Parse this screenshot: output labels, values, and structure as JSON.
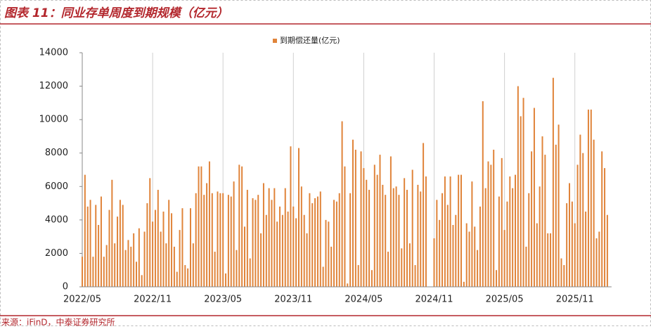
{
  "chart_data": {
    "type": "bar",
    "title": "图表 11：同业存单周度到期规模（亿元）",
    "source": "来源：iFinD，中泰证券研究所",
    "categories": [
      "2022/05",
      null,
      null,
      null,
      null,
      null,
      null,
      null,
      null,
      null,
      null,
      null,
      null,
      null,
      null,
      null,
      null,
      null,
      null,
      null,
      null,
      null,
      null,
      null,
      null,
      null,
      "2022/11",
      null,
      null,
      null,
      null,
      null,
      null,
      null,
      null,
      null,
      null,
      null,
      null,
      null,
      null,
      null,
      null,
      null,
      null,
      null,
      null,
      null,
      null,
      null,
      null,
      null,
      "2023/05",
      null,
      null,
      null,
      null,
      null,
      null,
      null,
      null,
      null,
      null,
      null,
      null,
      null,
      null,
      null,
      null,
      null,
      null,
      null,
      null,
      null,
      null,
      null,
      null,
      null,
      "2023/11",
      null,
      null,
      null,
      null,
      null,
      null,
      null,
      null,
      null,
      null,
      null,
      null,
      null,
      null,
      null,
      null,
      null,
      null,
      null,
      null,
      null,
      null,
      null,
      null,
      null,
      "2024/05",
      null,
      null,
      null,
      null,
      null,
      null,
      null,
      null,
      null,
      null,
      null,
      null,
      null,
      null,
      null,
      null,
      null,
      null,
      null,
      null,
      null,
      null,
      null,
      null,
      null,
      "2024/11",
      null,
      null,
      null,
      null,
      null,
      null,
      null,
      null,
      null,
      null,
      null,
      null,
      null,
      null,
      null,
      null,
      null,
      null,
      null,
      null,
      null,
      null,
      null,
      null,
      null,
      "2025/05",
      null,
      null,
      null,
      null,
      null,
      null,
      null,
      null,
      null,
      null,
      null,
      null,
      null,
      null,
      null,
      null,
      null,
      null,
      null,
      null,
      null,
      null,
      null,
      null,
      null,
      "2025/11",
      null,
      null,
      null,
      null,
      null,
      null,
      null,
      null,
      null,
      null,
      null,
      null
    ],
    "series": [
      {
        "name": "到期偿还量(亿元)",
        "color": "#e0843a",
        "values": [
          1800,
          6700,
          4800,
          5200,
          1800,
          4900,
          3700,
          5400,
          1800,
          2500,
          4600,
          6400,
          2600,
          4200,
          5200,
          4900,
          2200,
          2800,
          2400,
          3200,
          1500,
          3500,
          700,
          3300,
          5000,
          6500,
          3900,
          4600,
          5800,
          3300,
          4500,
          2600,
          5200,
          4400,
          2400,
          900,
          3400,
          4700,
          1300,
          1100,
          4700,
          2600,
          5600,
          7200,
          7200,
          5500,
          6200,
          7500,
          5600,
          2100,
          5700,
          5600,
          5600,
          800,
          5500,
          5400,
          6300,
          2200,
          7300,
          7200,
          3600,
          5800,
          1700,
          5300,
          5200,
          5500,
          3200,
          6200,
          4300,
          5900,
          5200,
          5900,
          3900,
          4800,
          4300,
          5900,
          4500,
          8400,
          4800,
          4100,
          8300,
          6000,
          4300,
          3200,
          5600,
          5000,
          5300,
          5400,
          5700,
          1200,
          4000,
          3900,
          2400,
          5200,
          5100,
          5600,
          9900,
          7200,
          200,
          5600,
          8800,
          8200,
          1300,
          8100,
          7100,
          6400,
          5800,
          1000,
          7300,
          6700,
          7900,
          6100,
          5500,
          2100,
          7800,
          5900,
          6000,
          5500,
          2300,
          6500,
          5800,
          2600,
          7000,
          1300,
          6100,
          5700,
          8600,
          6600,
          0,
          0,
          2900,
          5200,
          4000,
          5600,
          6600,
          4900,
          6600,
          3700,
          4300,
          6700,
          6700,
          300,
          3800,
          3300,
          6300,
          3600,
          2200,
          4800,
          11100,
          5900,
          7500,
          7300,
          8200,
          1000,
          5400,
          7700,
          3400,
          5100,
          6600,
          5900,
          6700,
          12000,
          10200,
          11300,
          2400,
          5600,
          8100,
          10700,
          3800,
          6000,
          9000,
          7900,
          3200,
          3200,
          12500,
          8500,
          9700,
          1700,
          1300,
          5000,
          6200,
          5100,
          3800,
          7300,
          9100,
          8000,
          4500,
          10600,
          10600,
          8800,
          2900,
          3300,
          8100,
          7100,
          4300
        ]
      }
    ],
    "ylim": [
      0,
      14000
    ],
    "yticks": [
      0,
      2000,
      4000,
      6000,
      8000,
      10000,
      12000,
      14000
    ],
    "xgrid": true,
    "legend": "top"
  }
}
